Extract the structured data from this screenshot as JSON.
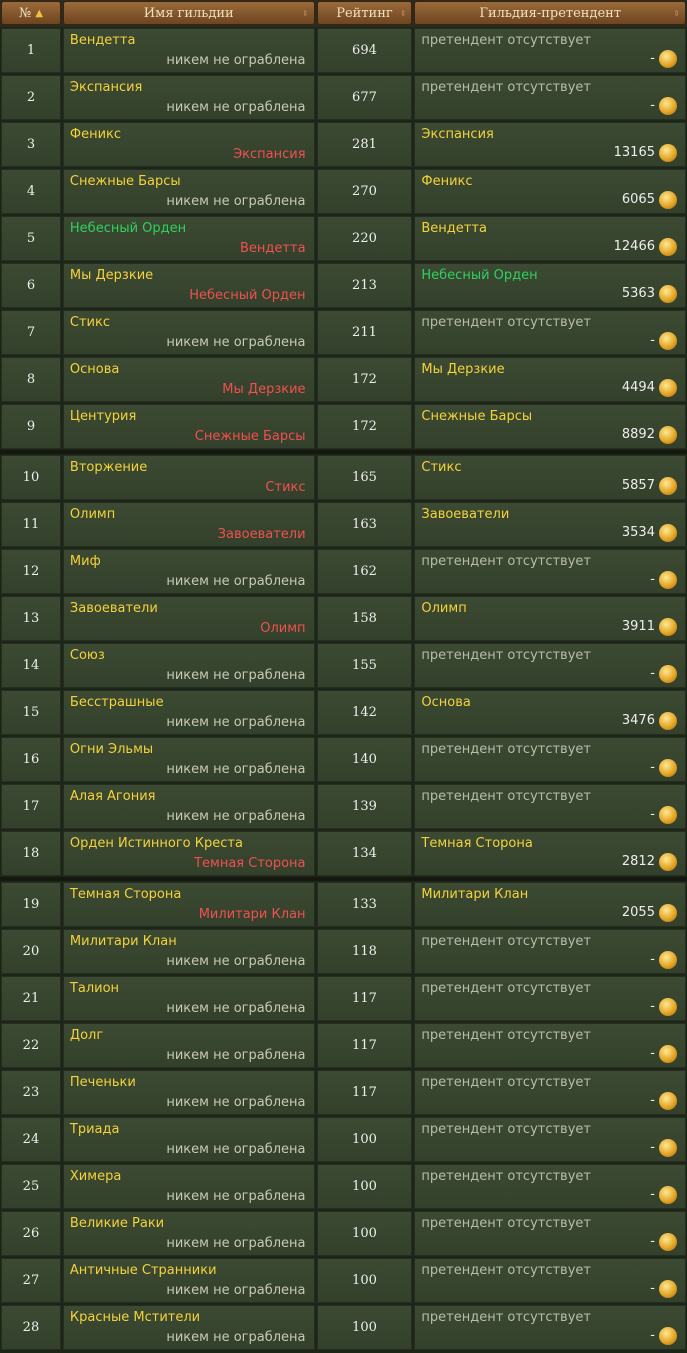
{
  "header": {
    "num": "№",
    "name": "Имя гильдии",
    "rating": "Рейтинг",
    "pretender": "Гильдия-претендент"
  },
  "rows": [
    {
      "n": "1",
      "name": "Вендетта",
      "robbed": "никем не ограблена",
      "robbed_by": false,
      "rating": "694",
      "pretender": "претендент отсутствует",
      "none": true,
      "amount": "-"
    },
    {
      "n": "2",
      "name": "Экспансия",
      "robbed": "никем не ограблена",
      "robbed_by": false,
      "rating": "677",
      "pretender": "претендент отсутствует",
      "none": true,
      "amount": "-"
    },
    {
      "n": "3",
      "name": "Феникс",
      "robbed": "Экспансия",
      "robbed_by": true,
      "rating": "281",
      "pretender": "Экспансия",
      "none": false,
      "amount": "13165"
    },
    {
      "n": "4",
      "name": "Снежные Барсы",
      "robbed": "никем не ограблена",
      "robbed_by": false,
      "rating": "270",
      "pretender": "Феникс",
      "none": false,
      "amount": "6065"
    },
    {
      "n": "5",
      "name": "Небесный Орден",
      "name_green": true,
      "robbed": "Вендетта",
      "robbed_by": true,
      "rating": "220",
      "pretender": "Вендетта",
      "none": false,
      "amount": "12466"
    },
    {
      "n": "6",
      "name": "Мы Дерзкие",
      "robbed": "Небесный Орден",
      "robbed_by": true,
      "rating": "213",
      "pretender": "Небесный Орден",
      "pretender_green": true,
      "none": false,
      "amount": "5363"
    },
    {
      "n": "7",
      "name": "Стикс",
      "robbed": "никем не ограблена",
      "robbed_by": false,
      "rating": "211",
      "pretender": "претендент отсутствует",
      "none": true,
      "amount": "-"
    },
    {
      "n": "8",
      "name": "Основа",
      "robbed": "Мы Дерзкие",
      "robbed_by": true,
      "rating": "172",
      "pretender": "Мы Дерзкие",
      "none": false,
      "amount": "4494"
    },
    {
      "n": "9",
      "name": "Центурия",
      "robbed": "Снежные Барсы",
      "robbed_by": true,
      "rating": "172",
      "pretender": "Снежные Барсы",
      "none": false,
      "amount": "8892"
    },
    {
      "n": "10",
      "name": "Вторжение",
      "robbed": "Стикс",
      "robbed_by": true,
      "rating": "165",
      "pretender": "Стикс",
      "none": false,
      "amount": "5857"
    },
    {
      "n": "11",
      "name": "Олимп",
      "robbed": "Завоеватели",
      "robbed_by": true,
      "rating": "163",
      "pretender": "Завоеватели",
      "none": false,
      "amount": "3534"
    },
    {
      "n": "12",
      "name": "Миф",
      "robbed": "никем не ограблена",
      "robbed_by": false,
      "rating": "162",
      "pretender": "претендент отсутствует",
      "none": true,
      "amount": "-"
    },
    {
      "n": "13",
      "name": "Завоеватели",
      "robbed": "Олимп",
      "robbed_by": true,
      "rating": "158",
      "pretender": "Олимп",
      "none": false,
      "amount": "3911"
    },
    {
      "n": "14",
      "name": "Союз",
      "robbed": "никем не ограблена",
      "robbed_by": false,
      "rating": "155",
      "pretender": "претендент отсутствует",
      "none": true,
      "amount": "-"
    },
    {
      "n": "15",
      "name": "Бесстрашные",
      "robbed": "никем не ограблена",
      "robbed_by": false,
      "rating": "142",
      "pretender": "Основа",
      "none": false,
      "amount": "3476"
    },
    {
      "n": "16",
      "name": "Огни Эльмы",
      "robbed": "никем не ограблена",
      "robbed_by": false,
      "rating": "140",
      "pretender": "претендент отсутствует",
      "none": true,
      "amount": "-"
    },
    {
      "n": "17",
      "name": "Алая Агония",
      "robbed": "никем не ограблена",
      "robbed_by": false,
      "rating": "139",
      "pretender": "претендент отсутствует",
      "none": true,
      "amount": "-"
    },
    {
      "n": "18",
      "name": "Орден Истинного Креста",
      "robbed": "Темная Сторона",
      "robbed_by": true,
      "rating": "134",
      "pretender": "Темная Сторона",
      "none": false,
      "amount": "2812"
    },
    {
      "n": "19",
      "name": "Темная Сторона",
      "robbed": "Милитари Клан",
      "robbed_by": true,
      "rating": "133",
      "pretender": "Милитари Клан",
      "none": false,
      "amount": "2055"
    },
    {
      "n": "20",
      "name": "Милитари Клан",
      "robbed": "никем не ограблена",
      "robbed_by": false,
      "rating": "118",
      "pretender": "претендент отсутствует",
      "none": true,
      "amount": "-"
    },
    {
      "n": "21",
      "name": "Талион",
      "robbed": "никем не ограблена",
      "robbed_by": false,
      "rating": "117",
      "pretender": "претендент отсутствует",
      "none": true,
      "amount": "-"
    },
    {
      "n": "22",
      "name": "Долг",
      "robbed": "никем не ограблена",
      "robbed_by": false,
      "rating": "117",
      "pretender": "претендент отсутствует",
      "none": true,
      "amount": "-"
    },
    {
      "n": "23",
      "name": "Печеньки",
      "robbed": "никем не ограблена",
      "robbed_by": false,
      "rating": "117",
      "pretender": "претендент отсутствует",
      "none": true,
      "amount": "-"
    },
    {
      "n": "24",
      "name": "Триада",
      "robbed": "никем не ограблена",
      "robbed_by": false,
      "rating": "100",
      "pretender": "претендент отсутствует",
      "none": true,
      "amount": "-"
    },
    {
      "n": "25",
      "name": "Химера",
      "robbed": "никем не ограблена",
      "robbed_by": false,
      "rating": "100",
      "pretender": "претендент отсутствует",
      "none": true,
      "amount": "-"
    },
    {
      "n": "26",
      "name": "Великие Раки",
      "robbed": "никем не ограблена",
      "robbed_by": false,
      "rating": "100",
      "pretender": "претендент отсутствует",
      "none": true,
      "amount": "-"
    },
    {
      "n": "27",
      "name": "Античные Странники",
      "robbed": "никем не ограблена",
      "robbed_by": false,
      "rating": "100",
      "pretender": "претендент отсутствует",
      "none": true,
      "amount": "-"
    },
    {
      "n": "28",
      "name": "Красные Мстители",
      "robbed": "никем не ограблена",
      "robbed_by": false,
      "rating": "100",
      "pretender": "претендент отсутствует",
      "none": true,
      "amount": "-"
    }
  ],
  "icons": {
    "sort": "arrow-up-icon",
    "coin": "gold-coin-icon"
  },
  "colors": {
    "name": "#f3d23a",
    "robbed_by": "#f05050",
    "ally": "#2fd060"
  }
}
